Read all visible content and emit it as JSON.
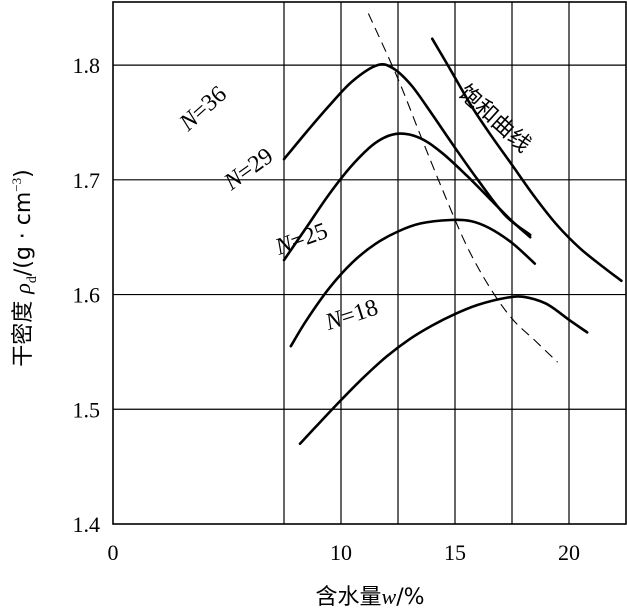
{
  "chart_data": {
    "type": "line",
    "title": "",
    "xlabel": {
      "prefix": "含水量",
      "var": "w",
      "suffix": "/%"
    },
    "ylabel": {
      "prefix": "干密度 ",
      "var": "ρ",
      "sub": "d",
      "unit_open": "/(g · cm",
      "sup": "−3",
      "unit_close": ")"
    },
    "xlim": [
      0,
      22.5
    ],
    "ylim": [
      1.4,
      1.855
    ],
    "xticks": [
      "0",
      "10",
      "15",
      "20"
    ],
    "yticks": [
      "1.4",
      "1.5",
      "1.6",
      "1.7",
      "1.8"
    ],
    "grid": true,
    "series": [
      {
        "name": "N=36",
        "label_n": "N",
        "label_rest": "=36",
        "points": [
          [
            7.5,
            1.718
          ],
          [
            8.5,
            1.742
          ],
          [
            9.5,
            1.765
          ],
          [
            10.5,
            1.786
          ],
          [
            11.6,
            1.8
          ],
          [
            12.3,
            1.797
          ],
          [
            13.1,
            1.782
          ],
          [
            14.0,
            1.757
          ],
          [
            15.0,
            1.728
          ],
          [
            16.0,
            1.7
          ],
          [
            17.2,
            1.669
          ],
          [
            18.3,
            1.652
          ]
        ]
      },
      {
        "name": "N=29",
        "label_n": "N",
        "label_rest": "=29",
        "points": [
          [
            7.5,
            1.63
          ],
          [
            8.5,
            1.659
          ],
          [
            9.5,
            1.688
          ],
          [
            10.5,
            1.713
          ],
          [
            11.5,
            1.732
          ],
          [
            12.4,
            1.74
          ],
          [
            13.4,
            1.737
          ],
          [
            14.4,
            1.724
          ],
          [
            15.5,
            1.704
          ],
          [
            16.5,
            1.684
          ],
          [
            17.5,
            1.664
          ],
          [
            18.3,
            1.65
          ]
        ]
      },
      {
        "name": "N=25",
        "label_n": "N",
        "label_rest": "=25",
        "points": [
          [
            7.8,
            1.555
          ],
          [
            8.5,
            1.578
          ],
          [
            9.5,
            1.606
          ],
          [
            10.5,
            1.628
          ],
          [
            11.5,
            1.644
          ],
          [
            12.5,
            1.655
          ],
          [
            13.5,
            1.662
          ],
          [
            14.8,
            1.665
          ],
          [
            15.7,
            1.664
          ],
          [
            16.5,
            1.658
          ],
          [
            17.5,
            1.645
          ],
          [
            18.5,
            1.627
          ]
        ]
      },
      {
        "name": "N=18",
        "label_n": "N",
        "label_rest": "=18",
        "points": [
          [
            8.2,
            1.47
          ],
          [
            9.0,
            1.487
          ],
          [
            10.0,
            1.508
          ],
          [
            11.0,
            1.528
          ],
          [
            12.0,
            1.546
          ],
          [
            13.0,
            1.561
          ],
          [
            14.0,
            1.573
          ],
          [
            15.0,
            1.583
          ],
          [
            16.0,
            1.591
          ],
          [
            17.2,
            1.597
          ],
          [
            18.0,
            1.598
          ],
          [
            19.0,
            1.592
          ],
          [
            20.0,
            1.578
          ],
          [
            20.8,
            1.567
          ]
        ]
      }
    ],
    "saturation_curve": {
      "name": "饱和曲线",
      "points": [
        [
          14.0,
          1.823
        ],
        [
          14.8,
          1.796
        ],
        [
          15.7,
          1.765
        ],
        [
          16.5,
          1.741
        ],
        [
          17.5,
          1.713
        ],
        [
          18.5,
          1.685
        ],
        [
          19.5,
          1.66
        ],
        [
          20.5,
          1.64
        ],
        [
          21.5,
          1.624
        ],
        [
          22.3,
          1.612
        ]
      ]
    },
    "dashed_line": {
      "points": [
        [
          11.2,
          1.845
        ],
        [
          12.5,
          1.788
        ],
        [
          13.5,
          1.738
        ],
        [
          14.5,
          1.689
        ],
        [
          15.5,
          1.643
        ],
        [
          16.5,
          1.607
        ],
        [
          17.5,
          1.579
        ],
        [
          18.5,
          1.56
        ],
        [
          19.5,
          1.541
        ]
      ]
    }
  }
}
